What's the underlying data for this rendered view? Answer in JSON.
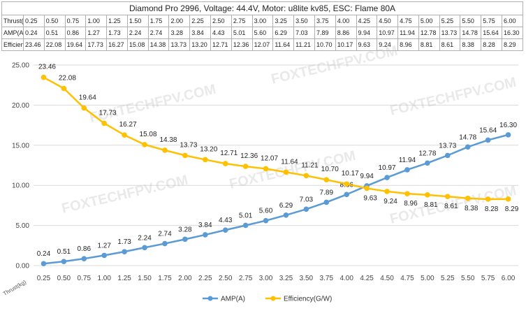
{
  "table": {
    "title": "Diamond Pro 2996, Voltage: 44.4V, Motor: u8lite kv85, ESC: Flame 80A",
    "rows": [
      {
        "header": "Thrust(kg)",
        "values": [
          "0.25",
          "0.50",
          "0.75",
          "1.00",
          "1.25",
          "1.50",
          "1.75",
          "2.00",
          "2.25",
          "2.50",
          "2.75",
          "3.00",
          "3.25",
          "3.50",
          "3.75",
          "4.00",
          "4.25",
          "4.50",
          "4.75",
          "5.00",
          "5.25",
          "5.50",
          "5.75",
          "6.00"
        ]
      },
      {
        "header": "AMP(A)",
        "values": [
          "0.24",
          "0.51",
          "0.86",
          "1.27",
          "1.73",
          "2.24",
          "2.74",
          "3.28",
          "3.84",
          "4.43",
          "5.01",
          "5.60",
          "6.29",
          "7.03",
          "7.89",
          "8.86",
          "9.94",
          "10.97",
          "11.94",
          "12.78",
          "13.73",
          "14.78",
          "15.64",
          "16.30"
        ]
      },
      {
        "header": "Efficiency(G/W)",
        "values": [
          "23.46",
          "22.08",
          "19.64",
          "17.73",
          "16.27",
          "15.08",
          "14.38",
          "13.73",
          "13.20",
          "12.71",
          "12.36",
          "12.07",
          "11.64",
          "11.21",
          "10.70",
          "10.17",
          "9.63",
          "9.24",
          "8.96",
          "8.81",
          "8.61",
          "8.38",
          "8.28",
          "8.29"
        ]
      }
    ]
  },
  "watermark": "FOXTECHFPV.COM",
  "chart_data": {
    "type": "line",
    "title": "",
    "xlabel": "Thrust(kg)",
    "ylabel": "",
    "categories": [
      "0.25",
      "0.50",
      "0.75",
      "1.00",
      "1.25",
      "1.50",
      "1.75",
      "2.00",
      "2.25",
      "2.50",
      "2.75",
      "3.00",
      "3.25",
      "3.50",
      "3.75",
      "4.00",
      "4.25",
      "4.50",
      "4.75",
      "5.00",
      "5.25",
      "5.50",
      "5.75",
      "6.00"
    ],
    "ylim": [
      0,
      25
    ],
    "yticks": [
      "0.00",
      "5.00",
      "10.00",
      "15.00",
      "20.00",
      "25.00"
    ],
    "grid": true,
    "legend_position": "bottom",
    "series": [
      {
        "name": "AMP(A)",
        "color": "#5b9bd5",
        "values": [
          0.24,
          0.51,
          0.86,
          1.27,
          1.73,
          2.24,
          2.74,
          3.28,
          3.84,
          4.43,
          5.01,
          5.6,
          6.29,
          7.03,
          7.89,
          8.86,
          9.94,
          10.97,
          11.94,
          12.78,
          13.73,
          14.78,
          15.64,
          16.3
        ]
      },
      {
        "name": "Efficiency(G/W)",
        "color": "#ffc000",
        "values": [
          23.46,
          22.08,
          19.64,
          17.73,
          16.27,
          15.08,
          14.38,
          13.73,
          13.2,
          12.71,
          12.36,
          12.07,
          11.64,
          11.21,
          10.7,
          10.17,
          9.63,
          9.24,
          8.96,
          8.81,
          8.61,
          8.38,
          8.28,
          8.29
        ]
      }
    ]
  }
}
